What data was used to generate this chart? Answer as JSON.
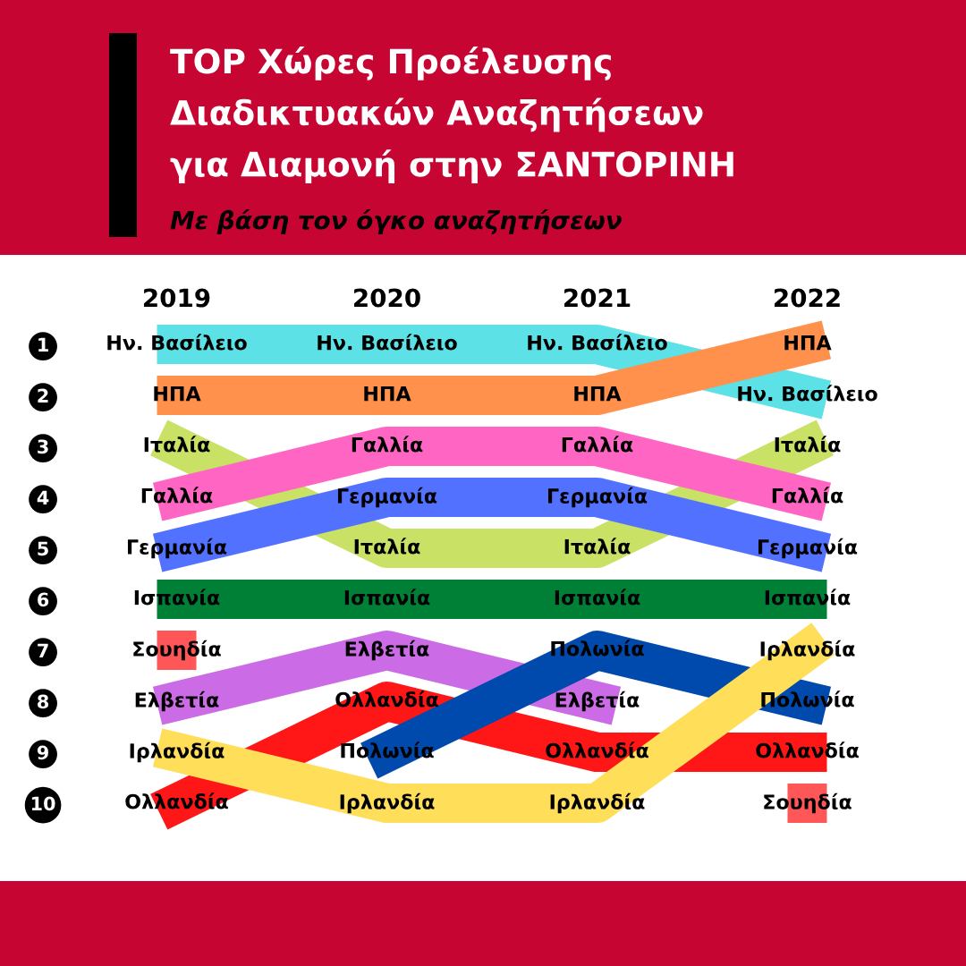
{
  "chart_data": {
    "type": "line",
    "title": "TOP Χώρες Προέλευσης Διαδικτυακών Αναζητήσεων για Διαμονή στην ΣΑΝΤΟΡΙΝΗ",
    "subtitle": "Με βάση τον όγκο αναζητήσεων",
    "categories": [
      "2019",
      "2020",
      "2021",
      "2022"
    ],
    "ylim": [
      10,
      1
    ],
    "yticks": [
      1,
      2,
      3,
      4,
      5,
      6,
      7,
      8,
      9,
      10
    ],
    "series": [
      {
        "name": "Ιταλία",
        "color": "#c9e265",
        "values": [
          3,
          5,
          5,
          3
        ]
      },
      {
        "name": "Ην. Βασίλειο",
        "color": "#5ce1e6",
        "values": [
          1,
          1,
          1,
          2
        ]
      },
      {
        "name": "ΗΠΑ",
        "color": "#ff914d",
        "values": [
          2,
          2,
          2,
          1
        ]
      },
      {
        "name": "Γαλλία",
        "color": "#ff66c4",
        "values": [
          4,
          3,
          3,
          4
        ]
      },
      {
        "name": "Γερμανία",
        "color": "#5271ff",
        "values": [
          5,
          4,
          4,
          5
        ]
      },
      {
        "name": "Ισπανία",
        "color": "#008037",
        "values": [
          6,
          6,
          6,
          6
        ]
      },
      {
        "name": "Σουηδία",
        "type": "scatter",
        "marker": "square",
        "color": "#ff5757",
        "values": [
          7,
          null,
          null,
          10
        ]
      },
      {
        "name": "Ελβετία",
        "color": "#cb6ce6",
        "values": [
          8,
          7,
          8,
          null
        ]
      },
      {
        "name": "Ολλανδία",
        "color": "#ff1616",
        "values": [
          10,
          8,
          9,
          9
        ]
      },
      {
        "name": "Πολωνία",
        "color": "#004aad",
        "values": [
          null,
          9,
          7,
          8
        ]
      },
      {
        "name": "Ιρλανδία",
        "color": "#ffde59",
        "values": [
          9,
          10,
          10,
          7
        ]
      }
    ]
  }
}
